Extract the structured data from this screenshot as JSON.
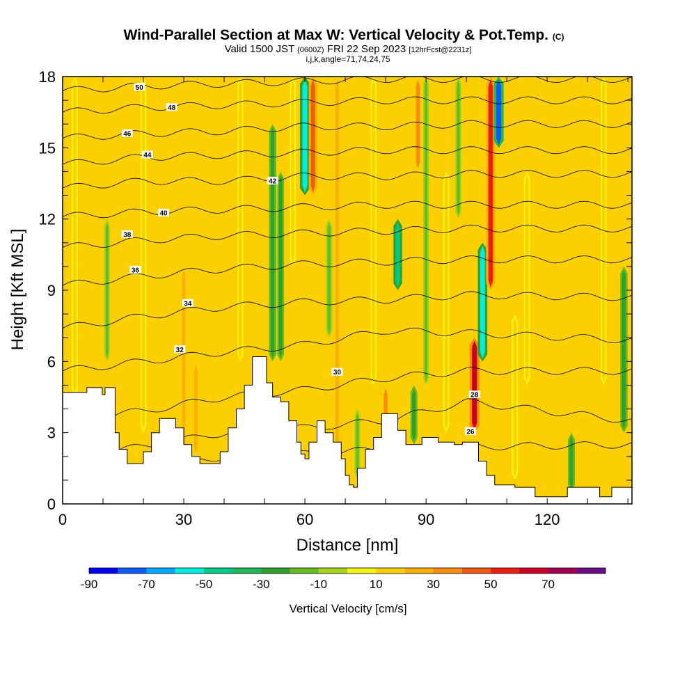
{
  "chart_data": {
    "type": "heatmap",
    "title": "Wind-Parallel Section at Max W: Vertical Velocity & Pot.Temp.",
    "title_mark": "(C)",
    "subtitle_parts": [
      "Valid 1500 JST",
      "(0600Z)",
      "FRI 22 Sep 2023",
      "[12hrFcst@2231z]"
    ],
    "subtitle2": "i,j,k,angle=71,74,24,75",
    "xlabel": "Distance [nm]",
    "ylabel": "Height [Kft MSL]",
    "xlim": [
      0,
      141
    ],
    "ylim": [
      0,
      18
    ],
    "x_ticks": [
      "0",
      "30",
      "60",
      "90",
      "120"
    ],
    "y_ticks": [
      "0",
      "3",
      "6",
      "9",
      "12",
      "15",
      "18"
    ],
    "colorbar": {
      "title": "Vertical Velocity [cm/s]",
      "labels": [
        "-90",
        "-70",
        "-50",
        "-30",
        "-10",
        "10",
        "30",
        "50",
        "70"
      ],
      "bins": [
        -90,
        -80,
        -70,
        -60,
        -50,
        -40,
        -30,
        -20,
        -10,
        0,
        10,
        20,
        30,
        40,
        50,
        60,
        70,
        80
      ],
      "colors": [
        "#0000f5",
        "#0a5cff",
        "#00aaff",
        "#00eedd",
        "#00cc88",
        "#22b85a",
        "#30a030",
        "#66bb22",
        "#a8d41e",
        "#f4f410",
        "#fcd000",
        "#fab000",
        "#f88c10",
        "#f25a10",
        "#ec1e10",
        "#cc0022",
        "#a00050",
        "#6c0c88"
      ]
    },
    "terrain_kft": [
      [
        0,
        4.7
      ],
      [
        3,
        4.7
      ],
      [
        6,
        4.9
      ],
      [
        9,
        4.9
      ],
      [
        9.8,
        4.6
      ],
      [
        10.5,
        4.9
      ],
      [
        12,
        4.9
      ],
      [
        13,
        3
      ],
      [
        14,
        2.3
      ],
      [
        16,
        1.7
      ],
      [
        18,
        1.7
      ],
      [
        20,
        2.2
      ],
      [
        22,
        3
      ],
      [
        24,
        3.6
      ],
      [
        26,
        3.6
      ],
      [
        28,
        3.2
      ],
      [
        30,
        2.5
      ],
      [
        32,
        2
      ],
      [
        34,
        1.7
      ],
      [
        37,
        1.7
      ],
      [
        39,
        2.2
      ],
      [
        41,
        3.2
      ],
      [
        43,
        4
      ],
      [
        45,
        5
      ],
      [
        47,
        6.2
      ],
      [
        49,
        6.2
      ],
      [
        50.5,
        5.1
      ],
      [
        52,
        4.5
      ],
      [
        54,
        4.3
      ],
      [
        56,
        3.5
      ],
      [
        58,
        2.6
      ],
      [
        59,
        2.1
      ],
      [
        60,
        1.9
      ],
      [
        61,
        2.6
      ],
      [
        63,
        3.5
      ],
      [
        65,
        3
      ],
      [
        67,
        2.6
      ],
      [
        69,
        1.9
      ],
      [
        70,
        1.2
      ],
      [
        71,
        0.8
      ],
      [
        72,
        0.7
      ],
      [
        73,
        1.5
      ],
      [
        75,
        2.3
      ],
      [
        77,
        2.8
      ],
      [
        79,
        3.8
      ],
      [
        81,
        3.8
      ],
      [
        83,
        3.1
      ],
      [
        85,
        2.5
      ],
      [
        87,
        2.5
      ],
      [
        89,
        2.8
      ],
      [
        91,
        2.8
      ],
      [
        93,
        2.6
      ],
      [
        95,
        2.6
      ],
      [
        97,
        2.5
      ],
      [
        99,
        2.6
      ],
      [
        101,
        2.6
      ],
      [
        103,
        1.8
      ],
      [
        105,
        1.2
      ],
      [
        107,
        0.8
      ],
      [
        110,
        0.8
      ],
      [
        112,
        0.7
      ],
      [
        116,
        0.7
      ],
      [
        117,
        0.3
      ],
      [
        120,
        0.3
      ],
      [
        124,
        0.3
      ],
      [
        125,
        0.7
      ],
      [
        132,
        0.7
      ],
      [
        133,
        0.3
      ],
      [
        135,
        0.3
      ],
      [
        136,
        0.7
      ],
      [
        141,
        0.7
      ]
    ],
    "w_bands": [
      {
        "x": 3,
        "zmin": 4.5,
        "zmax": 18,
        "w": 15
      },
      {
        "x": 11,
        "zmin": 6,
        "zmax": 12,
        "w": -12
      },
      {
        "x": 20,
        "zmin": 3,
        "zmax": 18,
        "w": 12
      },
      {
        "x": 30,
        "zmin": 2,
        "zmax": 10,
        "w": 20
      },
      {
        "x": 33,
        "zmin": 2,
        "zmax": 6,
        "w": 22
      },
      {
        "x": 44,
        "zmin": 6,
        "zmax": 18,
        "w": 12
      },
      {
        "x": 52,
        "zmin": 6,
        "zmax": 16,
        "w": -30
      },
      {
        "x": 54,
        "zmin": 6,
        "zmax": 14,
        "w": -22
      },
      {
        "x": 57,
        "zmin": 10,
        "zmax": 18,
        "w": 15
      },
      {
        "x": 60,
        "zmin": 13,
        "zmax": 18,
        "w": -60
      },
      {
        "x": 62,
        "zmin": 13,
        "zmax": 18,
        "w": 42
      },
      {
        "x": 66,
        "zmin": 7,
        "zmax": 12,
        "w": -20
      },
      {
        "x": 68,
        "zmin": 2,
        "zmax": 18,
        "w": 22
      },
      {
        "x": 73,
        "zmin": 1,
        "zmax": 4,
        "w": -12
      },
      {
        "x": 77,
        "zmin": 5,
        "zmax": 18,
        "w": 14
      },
      {
        "x": 80,
        "zmin": 3,
        "zmax": 5,
        "w": 32
      },
      {
        "x": 83,
        "zmin": 9,
        "zmax": 12,
        "w": -45
      },
      {
        "x": 87,
        "zmin": 2.5,
        "zmax": 5,
        "w": -25
      },
      {
        "x": 88,
        "zmin": 14,
        "zmax": 18,
        "w": 38
      },
      {
        "x": 90,
        "zmin": 5,
        "zmax": 18,
        "w": -12
      },
      {
        "x": 95,
        "zmin": 3,
        "zmax": 14,
        "w": 16
      },
      {
        "x": 98,
        "zmin": 12,
        "zmax": 18,
        "w": -15
      },
      {
        "x": 102,
        "zmin": 3,
        "zmax": 7,
        "w": 62
      },
      {
        "x": 104,
        "zmin": 6,
        "zmax": 11,
        "w": -55
      },
      {
        "x": 106,
        "zmin": 9,
        "zmax": 18,
        "w": 52
      },
      {
        "x": 108,
        "zmin": 15,
        "zmax": 18,
        "w": -80
      },
      {
        "x": 112,
        "zmin": 1,
        "zmax": 8,
        "w": 18
      },
      {
        "x": 115,
        "zmin": 5,
        "zmax": 14,
        "w": 15
      },
      {
        "x": 126,
        "zmin": 0.5,
        "zmax": 3,
        "w": -25
      },
      {
        "x": 134,
        "zmin": 5,
        "zmax": 18,
        "w": 12
      },
      {
        "x": 139,
        "zmin": 3,
        "zmax": 10,
        "w": -30
      }
    ],
    "theta_isentropes": [
      {
        "label": "26",
        "z": [
          1.0,
          1.5,
          2.0,
          2.1,
          2.3,
          2.4,
          2.5
        ],
        "lx": 101,
        "lz": 3.05
      },
      {
        "label": "28",
        "z": [
          2.0,
          2.4,
          3.0,
          3.2,
          3.5,
          4.3,
          3.5
        ],
        "lx": 102,
        "lz": 4.6
      },
      {
        "label": "30",
        "z": [
          3.6,
          3.9,
          4.5,
          4.8,
          5.3,
          5.6,
          5.6
        ],
        "lx": 68,
        "lz": 5.55
      },
      {
        "label": "32",
        "z": [
          5.6,
          6.0,
          6.4,
          6.7,
          7.3,
          7.2,
          6.9
        ],
        "lx": 29,
        "lz": 6.5
      },
      {
        "label": "34",
        "z": [
          7.4,
          7.9,
          8.3,
          8.5,
          8.6,
          8.8,
          8.7
        ],
        "lx": 31,
        "lz": 8.45
      },
      {
        "label": "36",
        "z": [
          9.2,
          9.6,
          9.9,
          10.1,
          10.2,
          10.3,
          10.3
        ],
        "lx": 18,
        "lz": 9.85
      },
      {
        "label": "38",
        "z": [
          10.8,
          11.1,
          11.3,
          11.4,
          11.5,
          11.6,
          11.6
        ],
        "lx": 16,
        "lz": 11.35
      },
      {
        "label": "40",
        "z": [
          12.1,
          12.3,
          12.4,
          12.5,
          12.6,
          12.6,
          12.6
        ],
        "lx": 25,
        "lz": 12.25
      },
      {
        "label": "42",
        "z": [
          13.3,
          13.6,
          13.6,
          13.8,
          13.8,
          13.9,
          13.9
        ],
        "lx": 52,
        "lz": 13.6
      },
      {
        "label": "44",
        "z": [
          14.3,
          14.6,
          14.7,
          14.8,
          14.9,
          14.9,
          14.9
        ],
        "lx": 21,
        "lz": 14.7
      },
      {
        "label": "46",
        "z": [
          15.4,
          15.6,
          15.7,
          15.9,
          15.9,
          16.0,
          16.0
        ],
        "lx": 16,
        "lz": 15.6
      },
      {
        "label": "48",
        "z": [
          16.5,
          16.7,
          16.8,
          16.9,
          17.0,
          17.0,
          17.0
        ],
        "lx": 27,
        "lz": 16.7
      },
      {
        "label": "50",
        "z": [
          17.4,
          17.6,
          17.7,
          17.8,
          17.9,
          17.9,
          17.9
        ],
        "lx": 19,
        "lz": 17.55
      }
    ]
  }
}
